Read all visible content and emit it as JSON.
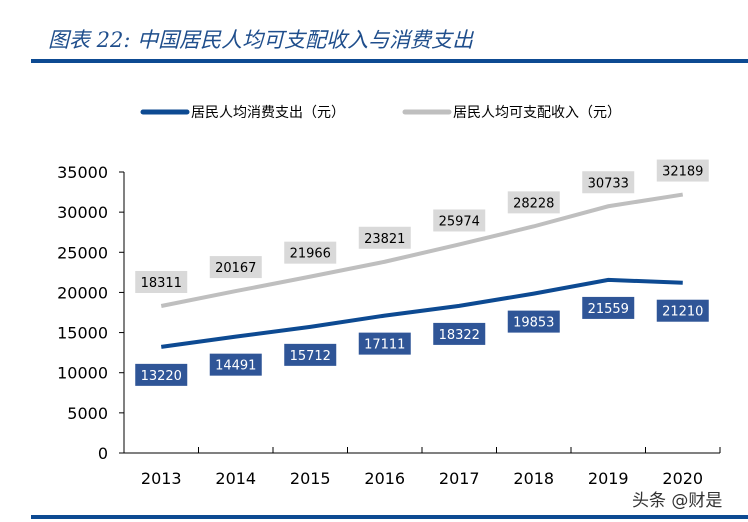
{
  "title": "图表 22:  中国居民人均可支配收入与消费支出",
  "watermark": "头条 @财是",
  "chart_data": {
    "type": "line",
    "categories": [
      "2013",
      "2014",
      "2015",
      "2016",
      "2017",
      "2018",
      "2019",
      "2020"
    ],
    "series": [
      {
        "name": "居民人均消费支出（元）",
        "color": "#0d4a92",
        "label_bg": "#2f5597",
        "values": [
          13220,
          14491,
          15712,
          17111,
          18322,
          19853,
          21559,
          21210
        ]
      },
      {
        "name": "居民人均可支配收入（元）",
        "color": "#bfbfbf",
        "label_bg": "#d9d9d9",
        "values": [
          18311,
          20167,
          21966,
          23821,
          25974,
          28228,
          30733,
          32189
        ]
      }
    ],
    "ylim": [
      0,
      35000
    ],
    "yticks": [
      0,
      5000,
      10000,
      15000,
      20000,
      25000,
      30000,
      35000
    ],
    "legend": "top",
    "grid": false
  }
}
